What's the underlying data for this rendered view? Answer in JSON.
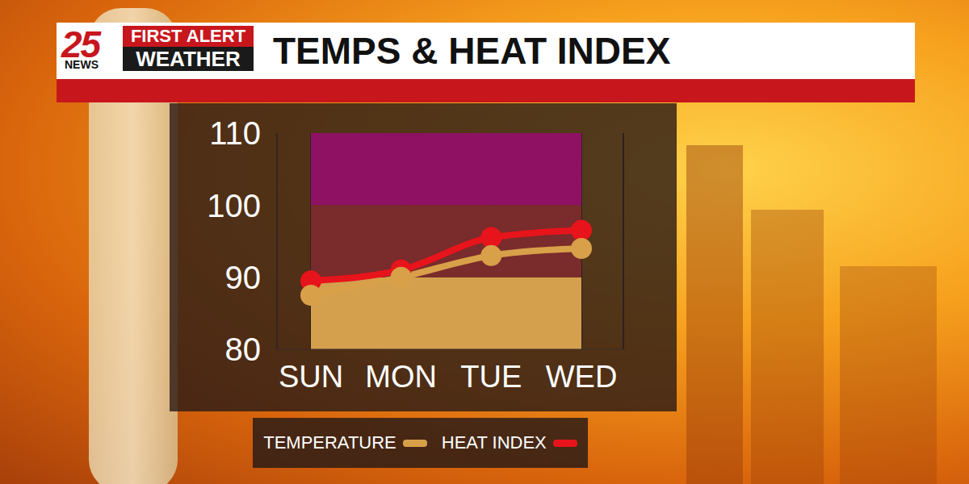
{
  "branding": {
    "logo_number": "25",
    "logo_name": "NEWS",
    "logo_line1": "FIRST ALERT",
    "logo_line2": "WEATHER"
  },
  "chart_data": {
    "type": "line",
    "title": "TEMPS & HEAT INDEX",
    "categories": [
      "SUN",
      "MON",
      "TUE",
      "WED"
    ],
    "series": [
      {
        "name": "TEMPERATURE",
        "color": "#d9a04a",
        "marker": "circle",
        "values": [
          87.5,
          90,
          93,
          94
        ]
      },
      {
        "name": "HEAT INDEX",
        "color": "#e8141b",
        "marker": "circle",
        "values": [
          89.5,
          91,
          95.5,
          96.5
        ]
      }
    ],
    "ylim": [
      80,
      110
    ],
    "yticks": [
      80,
      90,
      100,
      110
    ],
    "grid": true,
    "legend": "bottom"
  }
}
